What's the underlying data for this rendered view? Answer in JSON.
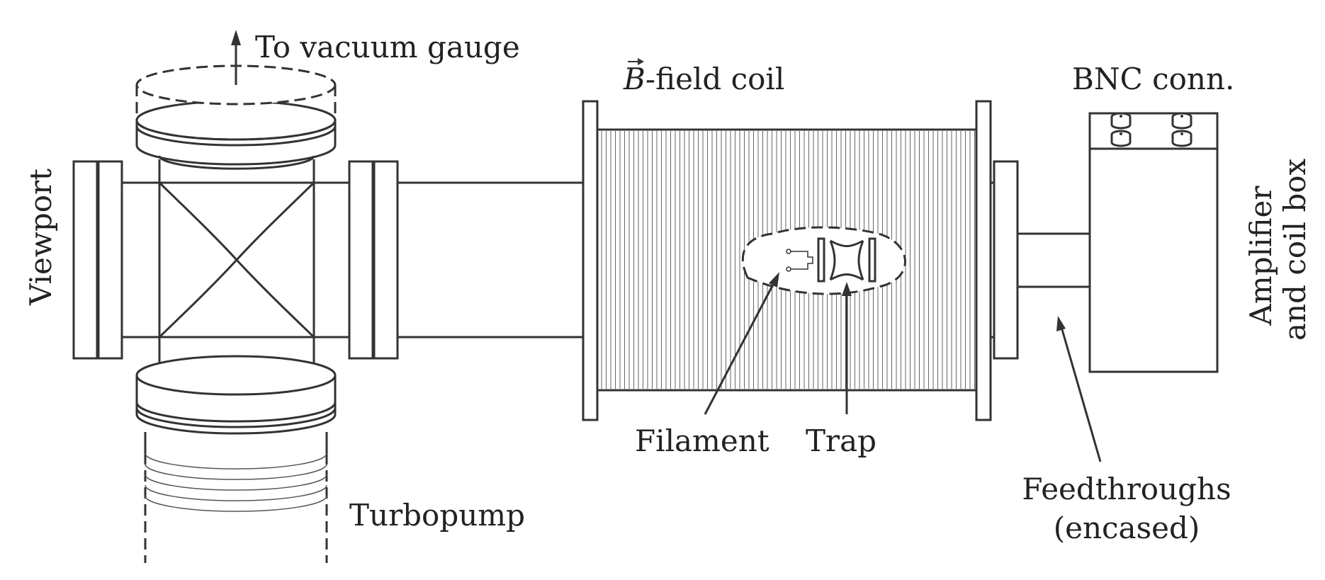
{
  "labels": {
    "vacuum_gauge": "To vacuum gauge",
    "viewport": "Viewport",
    "turbopump": "Turbopump",
    "bfield_symbol": "B",
    "bfield_rest": "-field coil",
    "filament": "Filament",
    "trap": "Trap",
    "bnc": "BNC conn.",
    "feedthroughs_line1": "Feedthroughs",
    "feedthroughs_line2": "(encased)",
    "amplifier_line1": "Amplifier",
    "amplifier_line2": "and coil box"
  }
}
